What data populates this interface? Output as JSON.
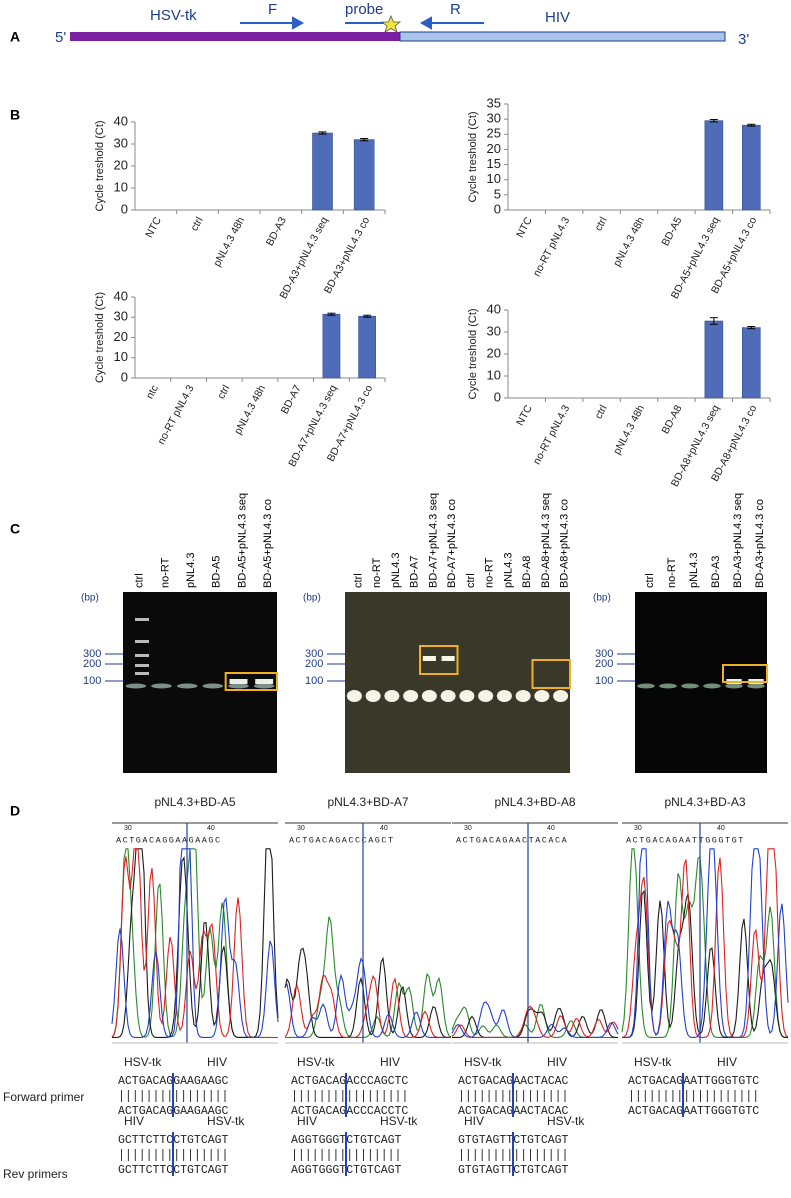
{
  "panel_labels": [
    "A",
    "B",
    "C",
    "D"
  ],
  "diagram": {
    "five_prime": "5'",
    "three_prime": "3'",
    "hsv_tk": "HSV-tk",
    "forward": "F",
    "probe": "probe",
    "reverse": "R",
    "hiv": "HIV"
  },
  "chart_data": [
    {
      "type": "bar",
      "y_label": "Cycle treshold (Ct)",
      "categories": [
        "NTC",
        "ctrl",
        "pNL4.3 48h",
        "BD-A3",
        "BD-A3+pNL4.3 seq",
        "BD-A3+pNL4.3 co"
      ],
      "values": [
        0,
        0,
        0,
        0,
        35,
        32
      ],
      "errors": [
        0,
        0,
        0,
        0,
        0.5,
        0.5
      ],
      "color": "#4f6cb8",
      "ylim": [
        0,
        40
      ],
      "yticks": [
        0,
        10,
        20,
        30,
        40
      ]
    },
    {
      "type": "bar",
      "y_label": "Cycle treshold (Ct)",
      "categories": [
        "NTC",
        "no-RT pNL4.3",
        "ctrl",
        "pNL4.3 48h",
        "BD-A5",
        "BD-A5+pNL4.3 seq",
        "BD-A5+pNL4.3 co"
      ],
      "values": [
        0,
        0,
        0,
        0,
        0,
        29.5,
        28
      ],
      "errors": [
        0,
        0,
        0,
        0,
        0,
        0.4,
        0.3
      ],
      "color": "#4f6cb8",
      "ylim": [
        0,
        35
      ],
      "yticks": [
        0,
        5,
        10,
        15,
        20,
        25,
        30,
        35
      ]
    },
    {
      "type": "bar",
      "y_label": "Cycle treshold (Ct)",
      "categories": [
        "ntc",
        "no-RT pNL4.3",
        "ctrl",
        "pNL4.3 48h",
        "BD-A7",
        "BD-A7+pNL4.3 seq",
        "BD-A7+pNL4.3 co"
      ],
      "values": [
        0,
        0,
        0,
        0,
        0,
        31.5,
        30.5
      ],
      "errors": [
        0,
        0,
        0,
        0,
        0,
        0.5,
        0.5
      ],
      "color": "#4f6cb8",
      "ylim": [
        0,
        40
      ],
      "yticks": [
        0,
        10,
        20,
        30,
        40
      ]
    },
    {
      "type": "bar",
      "y_label": "Cycle treshold (Ct)",
      "categories": [
        "NTC",
        "no-RT pNL4.3",
        "ctrl",
        "pNL4.3 48h",
        "BD-A8",
        "BD-A8+pNL4.3 seq",
        "BD-A8+pNL4.3 co"
      ],
      "values": [
        0,
        0,
        0,
        0,
        0,
        35,
        32
      ],
      "errors": [
        0,
        0,
        0,
        0,
        0,
        1.5,
        0.5
      ],
      "color": "#4f6cb8",
      "ylim": [
        0,
        40
      ],
      "yticks": [
        0,
        10,
        20,
        30,
        40
      ]
    }
  ],
  "gels": [
    {
      "bp_label": "(bp)",
      "ladder": [
        "300",
        "200",
        "100"
      ],
      "lanes": [
        "ctrl",
        "no-RT",
        "pNL4.3",
        "BD-A5",
        "BD-A5+pNL4.3 seq",
        "BD-A5+pNL4.3 co"
      ]
    },
    {
      "bp_label": "(bp)",
      "ladder": [
        "300",
        "200",
        "100"
      ],
      "lanes": [
        "ctrl",
        "no-RT",
        "pNL4.3",
        "BD-A7",
        "BD-A7+pNL4.3 seq",
        "BD-A7+pNL4.3 co",
        "ctrl",
        "no-RT",
        "pNL4.3",
        "BD-A8",
        "BD-A8+pNL4.3 seq",
        "BD-A8+pNL4.3 co"
      ]
    },
    {
      "bp_label": "(bp)",
      "ladder": [
        "300",
        "200",
        "100"
      ],
      "lanes": [
        "ctrl",
        "no-RT",
        "pNL4.3",
        "BD-A3",
        "BD-A3+pNL4.3 seq",
        "BD-A3+pNL4.3 co"
      ]
    }
  ],
  "row_labels": {
    "forward": "Forward primer",
    "reverse": "Rev primers"
  },
  "sequencing": [
    {
      "title": "pNL4.3+BD-A5",
      "scale": [
        "30",
        "40"
      ],
      "base_calls": "ACTGACAGGAAGAAGC",
      "forward": {
        "left": "HSV-tk",
        "right": "HIV",
        "top": "ACTGACAGGAAGAAGC",
        "bottom": "ACTGACAGGAAGAAGC"
      },
      "reverse": {
        "left": "HIV",
        "right": "HSV-tk",
        "top": "GCTTCTTCCTGTCAGT",
        "bottom": "GCTTCTTCCTGTCAGT"
      }
    },
    {
      "title": "pNL4.3+BD-A7",
      "scale": [
        "30",
        "40"
      ],
      "base_calls": "ACTGACAGACCCAGCT",
      "forward": {
        "left": "HSV-tk",
        "right": "HIV",
        "top": "ACTGACAGACCCAGCTC",
        "bottom": "ACTGACAGACCCACCTC"
      },
      "reverse": {
        "left": "HIV",
        "right": "HSV-tk",
        "top": "AGGTGGGTCTGTCAGT",
        "bottom": "AGGTGGGTCTGTCAGT"
      }
    },
    {
      "title": "pNL4.3+BD-A8",
      "scale": [
        "30",
        "40"
      ],
      "base_calls": "ACTGACAGAACTACACA",
      "forward": {
        "left": "HSV-tk",
        "right": "HIV",
        "top": "ACTGACAGAACTACAC",
        "bottom": "ACTGACAGAACTACAC"
      },
      "reverse": {
        "left": "HIV",
        "right": "HSV-tk",
        "top": "GTGTAGTTCTGTCAGT",
        "bottom": "GTGTAGTTCTGTCAGT"
      }
    },
    {
      "title": "pNL4.3+BD-A3",
      "scale": [
        "30",
        "40"
      ],
      "base_calls": "ACTGACAGAATTGGGTGT",
      "forward": {
        "left": "HSV-tk",
        "right": "HIV",
        "top": "ACTGACAGAATTGGGTGTC",
        "bottom": "ACTGACAGAATTGGGTGTC"
      }
    }
  ]
}
